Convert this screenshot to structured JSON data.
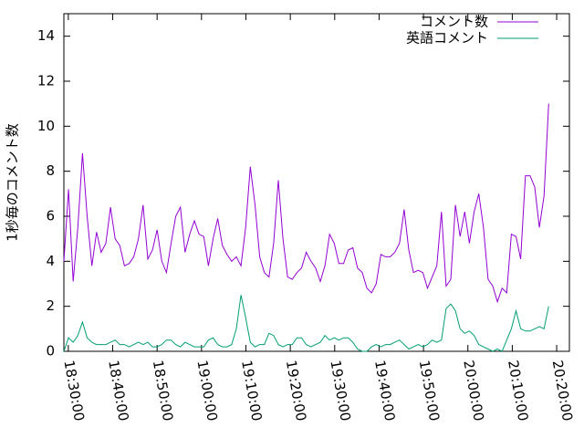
{
  "chart_data": {
    "type": "line",
    "y_label": "1秒毎のコメント数",
    "x": [
      "18:29:00",
      "18:30:03",
      "18:31:06",
      "18:32:09",
      "18:33:12",
      "18:34:15",
      "18:35:18",
      "18:36:21",
      "18:37:24",
      "18:38:27",
      "18:39:30",
      "18:40:33",
      "18:41:36",
      "18:42:39",
      "18:43:42",
      "18:44:45",
      "18:45:48",
      "18:46:51",
      "18:47:54",
      "18:48:57",
      "18:50:00",
      "18:51:03",
      "18:52:06",
      "18:53:09",
      "18:54:12",
      "18:55:15",
      "18:56:18",
      "18:57:21",
      "18:58:24",
      "18:59:27",
      "19:00:30",
      "19:01:33",
      "19:02:36",
      "19:03:39",
      "19:04:42",
      "19:05:45",
      "19:06:48",
      "19:07:51",
      "19:08:54",
      "19:09:57",
      "19:11:00",
      "19:12:03",
      "19:13:06",
      "19:14:09",
      "19:15:12",
      "19:16:15",
      "19:17:18",
      "19:18:21",
      "19:19:24",
      "19:20:27",
      "19:21:30",
      "19:22:33",
      "19:23:36",
      "19:24:39",
      "19:25:42",
      "19:26:45",
      "19:27:48",
      "19:28:51",
      "19:29:54",
      "19:30:57",
      "19:32:00",
      "19:33:03",
      "19:34:06",
      "19:35:09",
      "19:36:12",
      "19:37:15",
      "19:38:18",
      "19:39:21",
      "19:40:24",
      "19:41:27",
      "19:42:30",
      "19:43:33",
      "19:44:36",
      "19:45:39",
      "19:46:42",
      "19:47:45",
      "19:48:48",
      "19:49:51",
      "19:50:54",
      "19:51:57",
      "19:53:00",
      "19:54:03",
      "19:55:06",
      "19:56:09",
      "19:57:12",
      "19:58:15",
      "19:59:18",
      "20:00:21",
      "20:01:24",
      "20:02:27",
      "20:03:30",
      "20:04:33",
      "20:05:36",
      "20:06:39",
      "20:07:42",
      "20:08:45",
      "20:09:48",
      "20:10:51",
      "20:11:54",
      "20:12:57",
      "20:14:00",
      "20:15:03",
      "20:16:06",
      "20:17:09",
      "20:18:12"
    ],
    "series": [
      {
        "name": "コメント数",
        "color": "#9400d3",
        "values": [
          4.0,
          7.2,
          3.1,
          5.5,
          8.8,
          6.0,
          3.8,
          5.3,
          4.4,
          4.8,
          6.4,
          5.0,
          4.7,
          3.8,
          3.9,
          4.2,
          5.0,
          6.5,
          4.1,
          4.5,
          5.4,
          4.0,
          3.5,
          4.8,
          6.0,
          6.4,
          4.4,
          5.2,
          5.8,
          5.2,
          5.1,
          3.8,
          5.0,
          5.9,
          4.7,
          4.3,
          4.0,
          4.2,
          3.8,
          5.5,
          8.2,
          6.5,
          4.2,
          3.5,
          3.3,
          4.8,
          7.6,
          5.0,
          3.3,
          3.2,
          3.5,
          3.7,
          4.4,
          4.0,
          3.7,
          3.1,
          3.8,
          5.2,
          4.8,
          3.9,
          3.9,
          4.5,
          4.6,
          3.7,
          3.5,
          2.8,
          2.6,
          3.0,
          4.3,
          4.2,
          4.2,
          4.4,
          4.8,
          6.3,
          4.5,
          3.5,
          3.6,
          3.5,
          2.8,
          3.3,
          3.8,
          6.2,
          2.9,
          3.2,
          6.5,
          5.1,
          6.2,
          4.8,
          6.2,
          7.0,
          5.5,
          3.2,
          2.9,
          2.2,
          2.8,
          2.6,
          5.2,
          5.1,
          4.1,
          7.8,
          7.8,
          7.3,
          5.5,
          6.9,
          11.0
        ]
      },
      {
        "name": "英語コメント",
        "color": "#009e73",
        "values": [
          0,
          0.6,
          0.4,
          0.7,
          1.3,
          0.6,
          0.4,
          0.3,
          0.3,
          0.3,
          0.4,
          0.5,
          0.3,
          0.3,
          0.2,
          0.3,
          0.4,
          0.3,
          0.4,
          0.2,
          0.2,
          0.3,
          0.5,
          0.5,
          0.3,
          0.2,
          0.4,
          0.3,
          0.2,
          0.2,
          0.2,
          0.5,
          0.6,
          0.3,
          0.2,
          0.2,
          0.3,
          1.0,
          2.5,
          1.5,
          0.4,
          0.2,
          0.3,
          0.3,
          0.8,
          0.7,
          0.3,
          0.2,
          0.3,
          0.3,
          0.6,
          0.6,
          0.3,
          0.2,
          0.3,
          0.4,
          0.7,
          0.5,
          0.6,
          0.5,
          0.6,
          0.6,
          0.4,
          0.1,
          0,
          0,
          0.2,
          0.3,
          0.2,
          0.3,
          0.3,
          0.4,
          0.5,
          0.3,
          0.1,
          0.2,
          0.3,
          0.2,
          0.3,
          0.5,
          0.4,
          0.5,
          1.9,
          2.1,
          1.8,
          1.0,
          0.8,
          0.9,
          0.7,
          0.3,
          0.2,
          0.1,
          0,
          0.1,
          0,
          0.5,
          1.0,
          1.8,
          1.0,
          0.9,
          0.9,
          1.0,
          1.1,
          1.0,
          2.0
        ]
      }
    ],
    "xlim": [
      "18:29:00",
      "20:22:52"
    ],
    "xticks": [
      "18:30:00",
      "18:40:00",
      "18:50:00",
      "19:00:00",
      "19:10:00",
      "19:20:00",
      "19:30:00",
      "19:40:00",
      "19:50:00",
      "20:00:00",
      "20:10:00",
      "20:20:00"
    ],
    "ylim": [
      0,
      15
    ],
    "yticks": [
      0,
      2,
      4,
      6,
      8,
      10,
      12,
      14
    ],
    "legend": "top-right"
  }
}
